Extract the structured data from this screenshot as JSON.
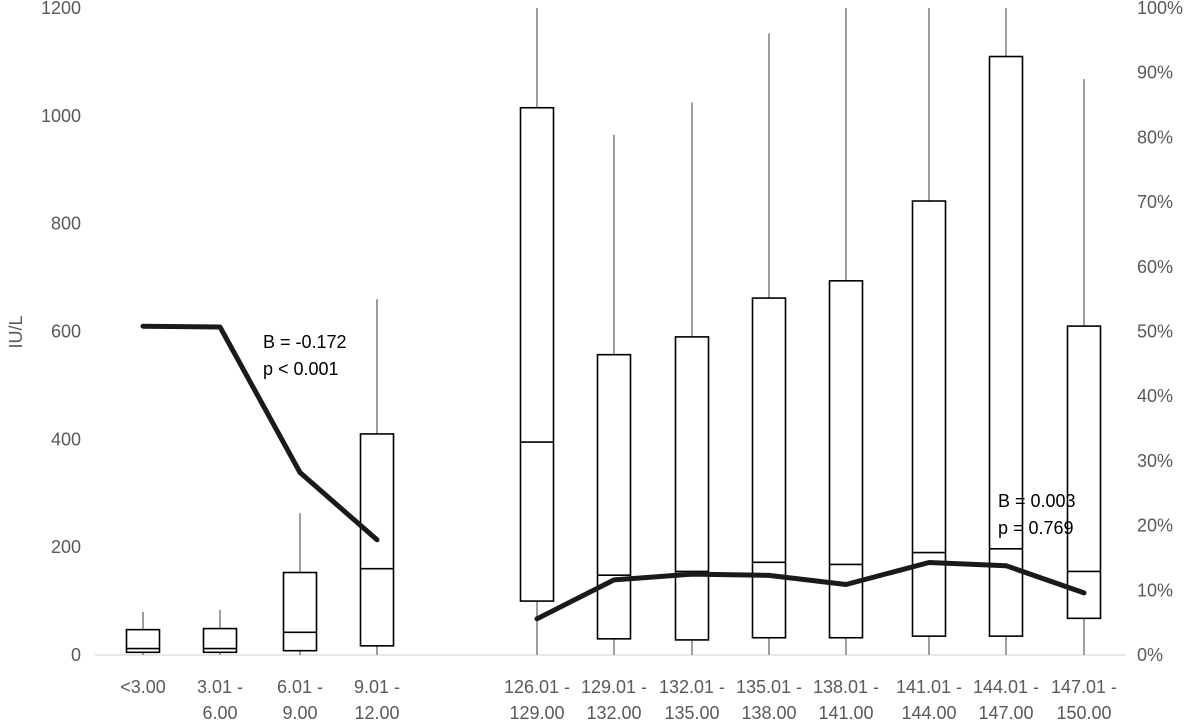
{
  "chart_data": {
    "type": "box",
    "ylabel": "IU/L",
    "ylim": [
      0,
      1200
    ],
    "y_ticks": [
      "0",
      "200",
      "400",
      "600",
      "800",
      "1000",
      "1200"
    ],
    "y2lim": [
      0,
      100
    ],
    "y2_ticks": [
      "0%",
      "10%",
      "20%",
      "30%",
      "40%",
      "50%",
      "60%",
      "70%",
      "80%",
      "90%",
      "100%"
    ],
    "groups": [
      {
        "categories": [
          {
            "line1": "<3.00",
            "line2": ""
          },
          {
            "line1": "3.01 -",
            "line2": "6.00"
          },
          {
            "line1": "6.01 -",
            "line2": "9.00"
          },
          {
            "line1": "9.01 -",
            "line2": "12.00"
          }
        ],
        "boxes": [
          {
            "q1": 5,
            "median": 12,
            "q3": 47,
            "whisker_low": 0,
            "whisker_high": 80
          },
          {
            "q1": 5,
            "median": 12,
            "q3": 49,
            "whisker_low": 0,
            "whisker_high": 84
          },
          {
            "q1": 8,
            "median": 42,
            "q3": 153,
            "whisker_low": 0,
            "whisker_high": 263
          },
          {
            "q1": 17,
            "median": 160,
            "q3": 410,
            "whisker_low": 0,
            "whisker_high": 660
          }
        ],
        "trend_percent": [
          50.8,
          50.7,
          28.2,
          17.8
        ],
        "annotation": [
          "B = -0.172",
          "p < 0.001"
        ]
      },
      {
        "categories": [
          {
            "line1": "126.01 -",
            "line2": "129.00"
          },
          {
            "line1": "129.01 -",
            "line2": "132.00"
          },
          {
            "line1": "132.01 -",
            "line2": "135.00"
          },
          {
            "line1": "135.01 -",
            "line2": "138.00"
          },
          {
            "line1": "138.01 -",
            "line2": "141.00"
          },
          {
            "line1": "141.01 -",
            "line2": "144.00"
          },
          {
            "line1": "144.01 -",
            "line2": "147.00"
          },
          {
            "line1": "147.01 -",
            "line2": "150.00"
          }
        ],
        "boxes": [
          {
            "q1": 100,
            "median": 395,
            "q3": 1015,
            "whisker_low": 0,
            "whisker_high": 1200
          },
          {
            "q1": 30,
            "median": 148,
            "q3": 557,
            "whisker_low": 0,
            "whisker_high": 965
          },
          {
            "q1": 28,
            "median": 155,
            "q3": 590,
            "whisker_low": 0,
            "whisker_high": 1025
          },
          {
            "q1": 32,
            "median": 172,
            "q3": 662,
            "whisker_low": 0,
            "whisker_high": 1153
          },
          {
            "q1": 32,
            "median": 168,
            "q3": 694,
            "whisker_low": 0,
            "whisker_high": 1200
          },
          {
            "q1": 35,
            "median": 190,
            "q3": 842,
            "whisker_low": 0,
            "whisker_high": 1200
          },
          {
            "q1": 35,
            "median": 197,
            "q3": 1110,
            "whisker_low": 0,
            "whisker_high": 1200
          },
          {
            "q1": 68,
            "median": 155,
            "q3": 610,
            "whisker_low": 0,
            "whisker_high": 1068
          }
        ],
        "trend_percent": [
          5.6,
          11.6,
          12.5,
          12.3,
          10.9,
          14.3,
          13.8,
          9.6
        ],
        "annotation": [
          "B = 0.003",
          "p = 0.769"
        ]
      }
    ],
    "grid": false,
    "legend": "none"
  }
}
